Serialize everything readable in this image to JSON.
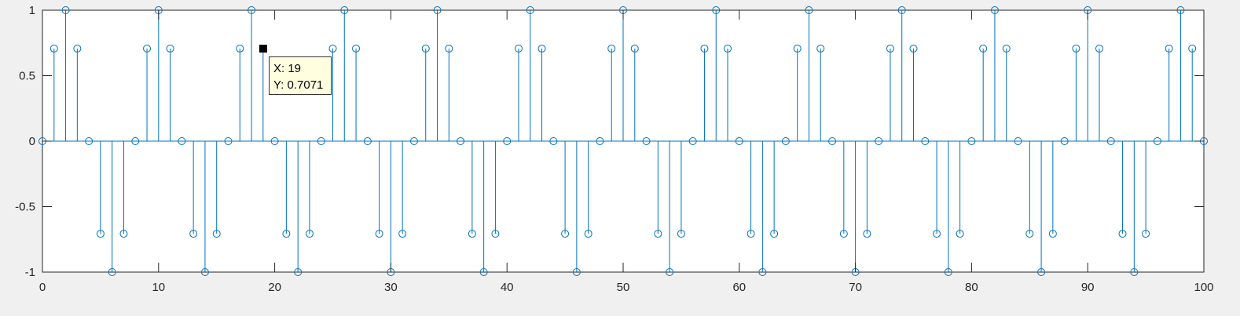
{
  "chart_data": {
    "type": "stem",
    "x_start": 0,
    "x_end": 100,
    "period": 8,
    "pattern": [
      0,
      0.7071,
      1,
      0.7071,
      0,
      -0.7071,
      -1,
      -0.7071
    ],
    "xlim": [
      0,
      100
    ],
    "ylim": [
      -1,
      1
    ],
    "x_ticks": [
      0,
      10,
      20,
      30,
      40,
      50,
      60,
      70,
      80,
      90,
      100
    ],
    "y_ticks": [
      1,
      0.5,
      0,
      -0.5,
      -1
    ],
    "x_tick_labels": [
      "0",
      "10",
      "20",
      "30",
      "40",
      "50",
      "60",
      "70",
      "80",
      "90",
      "100"
    ],
    "y_tick_labels": [
      "1",
      "0.5",
      "0",
      "-0.5",
      "-1"
    ],
    "series_color": "#0072bd",
    "grid": false,
    "datatip": {
      "x": 19,
      "y": 0.7071,
      "x_text": "X: 19",
      "y_text": "Y: 0.7071"
    }
  }
}
